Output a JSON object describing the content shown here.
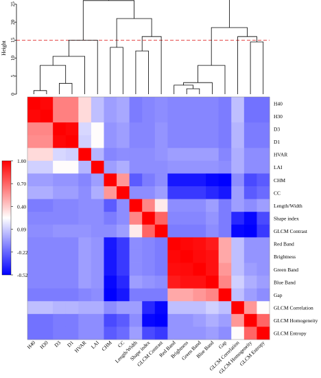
{
  "chart_data": {
    "type": "heatmap",
    "variables": [
      "H40",
      "H30",
      "D3",
      "D1",
      "HVAR",
      "LAI",
      "CHM",
      "CC",
      "Length/Width",
      "Shape index",
      "GLCM Contrast",
      "Red Band",
      "Brightness",
      "Green Band",
      "Blue Band",
      "Gap",
      "GLCM Correlation",
      "GLCM Homogeneity",
      "GLCM Entropy"
    ],
    "matrix": [
      [
        1.0,
        0.98,
        0.62,
        0.62,
        0.35,
        0.05,
        -0.05,
        -0.02,
        -0.15,
        -0.12,
        -0.1,
        -0.12,
        -0.12,
        -0.12,
        -0.12,
        -0.15,
        0.05,
        -0.18,
        -0.18
      ],
      [
        0.98,
        1.0,
        0.62,
        0.62,
        0.35,
        0.05,
        -0.05,
        -0.02,
        -0.15,
        -0.12,
        -0.1,
        -0.12,
        -0.12,
        -0.12,
        -0.12,
        -0.15,
        0.05,
        -0.18,
        -0.18
      ],
      [
        0.6,
        0.6,
        1.0,
        0.98,
        0.12,
        0.25,
        -0.08,
        -0.05,
        -0.12,
        -0.12,
        -0.08,
        -0.12,
        -0.12,
        -0.12,
        -0.12,
        -0.15,
        0.02,
        -0.15,
        -0.15
      ],
      [
        0.58,
        0.58,
        0.98,
        1.0,
        0.1,
        0.25,
        -0.08,
        -0.05,
        -0.12,
        -0.12,
        -0.08,
        -0.12,
        -0.12,
        -0.12,
        -0.12,
        -0.15,
        0.02,
        -0.15,
        -0.15
      ],
      [
        0.35,
        0.35,
        0.12,
        0.1,
        1.0,
        0.02,
        -0.12,
        -0.1,
        -0.1,
        -0.1,
        -0.08,
        -0.05,
        -0.05,
        -0.05,
        -0.05,
        -0.12,
        0.0,
        -0.1,
        -0.1
      ],
      [
        0.1,
        0.1,
        0.25,
        0.25,
        0.02,
        1.0,
        -0.05,
        0.0,
        -0.1,
        -0.1,
        -0.1,
        -0.08,
        -0.08,
        -0.08,
        -0.08,
        -0.1,
        0.0,
        -0.1,
        -0.1
      ],
      [
        -0.05,
        -0.05,
        -0.08,
        -0.08,
        -0.12,
        -0.05,
        1.0,
        0.55,
        -0.25,
        -0.15,
        -0.1,
        -0.45,
        -0.45,
        -0.45,
        -0.5,
        -0.52,
        -0.1,
        -0.3,
        -0.25
      ],
      [
        0.0,
        0.0,
        -0.05,
        -0.05,
        -0.1,
        0.0,
        0.55,
        1.0,
        -0.1,
        -0.1,
        -0.05,
        -0.35,
        -0.35,
        -0.35,
        -0.4,
        -0.45,
        -0.05,
        -0.25,
        -0.2
      ],
      [
        -0.15,
        -0.15,
        -0.12,
        -0.12,
        -0.1,
        -0.1,
        -0.25,
        -0.1,
        1.0,
        0.6,
        0.3,
        -0.1,
        -0.1,
        -0.1,
        -0.05,
        -0.15,
        -0.05,
        -0.1,
        -0.05
      ],
      [
        -0.12,
        -0.12,
        -0.12,
        -0.12,
        -0.1,
        -0.1,
        -0.15,
        -0.1,
        0.6,
        1.0,
        0.7,
        -0.12,
        -0.12,
        -0.12,
        -0.08,
        -0.15,
        -0.4,
        -0.5,
        -0.3
      ],
      [
        -0.1,
        -0.1,
        -0.08,
        -0.08,
        -0.08,
        -0.1,
        -0.1,
        -0.05,
        0.3,
        0.7,
        1.0,
        -0.15,
        -0.15,
        -0.15,
        -0.1,
        -0.15,
        -0.5,
        -0.52,
        -0.35
      ],
      [
        -0.12,
        -0.12,
        -0.12,
        -0.12,
        -0.05,
        -0.08,
        -0.45,
        -0.35,
        -0.1,
        -0.12,
        -0.15,
        1.0,
        0.98,
        0.96,
        0.92,
        0.5,
        0.05,
        -0.08,
        -0.08
      ],
      [
        -0.12,
        -0.12,
        -0.12,
        -0.12,
        -0.05,
        -0.08,
        -0.45,
        -0.35,
        -0.1,
        -0.12,
        -0.15,
        0.98,
        1.0,
        0.97,
        0.95,
        0.5,
        0.05,
        -0.08,
        -0.08
      ],
      [
        -0.12,
        -0.12,
        -0.12,
        -0.12,
        -0.05,
        -0.08,
        -0.45,
        -0.35,
        -0.1,
        -0.12,
        -0.15,
        0.96,
        0.97,
        1.0,
        0.95,
        0.55,
        0.05,
        -0.05,
        -0.08
      ],
      [
        -0.12,
        -0.12,
        -0.12,
        -0.12,
        -0.05,
        -0.08,
        -0.5,
        -0.4,
        -0.05,
        -0.08,
        -0.1,
        0.92,
        0.95,
        0.95,
        1.0,
        0.6,
        0.1,
        0.0,
        -0.05
      ],
      [
        -0.15,
        -0.15,
        -0.15,
        -0.15,
        -0.12,
        -0.1,
        -0.52,
        -0.45,
        -0.15,
        -0.15,
        -0.15,
        0.5,
        0.5,
        0.55,
        0.6,
        1.0,
        0.05,
        -0.05,
        -0.1
      ],
      [
        0.05,
        0.05,
        0.02,
        0.02,
        0.0,
        0.0,
        -0.1,
        -0.05,
        -0.05,
        -0.4,
        -0.5,
        0.05,
        0.05,
        0.05,
        0.1,
        0.05,
        1.0,
        0.55,
        0.25
      ],
      [
        -0.18,
        -0.18,
        -0.15,
        -0.15,
        -0.1,
        -0.1,
        -0.3,
        -0.25,
        -0.1,
        -0.5,
        -0.52,
        -0.08,
        -0.08,
        -0.05,
        0.0,
        -0.05,
        0.55,
        1.0,
        0.7
      ],
      [
        -0.18,
        -0.18,
        -0.15,
        -0.15,
        -0.1,
        -0.1,
        -0.25,
        -0.2,
        -0.05,
        -0.3,
        -0.35,
        -0.08,
        -0.08,
        -0.08,
        -0.05,
        -0.1,
        0.25,
        0.7,
        1.0
      ]
    ],
    "colorbar": {
      "ticks": [
        "1.00",
        "0.70",
        "0.40",
        "0.09",
        "-0.22",
        "-0.52"
      ],
      "min": -0.52,
      "max": 1.0,
      "colors": [
        "#0000ff",
        "#ffffff",
        "#ff0000"
      ]
    },
    "dendrogram": {
      "ylabel": "Height",
      "yticks": [
        0,
        5,
        10,
        15,
        20,
        25
      ],
      "ylim": [
        0,
        25
      ],
      "cut_height": 15,
      "cut_line_color": "#e03030",
      "merges": [
        [
          0,
          1,
          1.0
        ],
        [
          2,
          3,
          3.0
        ],
        [
          -1,
          -2,
          8.0
        ],
        [
          -3,
          4,
          10.5
        ],
        [
          -4,
          5,
          15.0
        ],
        [
          6,
          7,
          13.0
        ],
        [
          8,
          9,
          12.0
        ],
        [
          -7,
          10,
          16.0
        ],
        [
          -6,
          -8,
          21.0
        ],
        [
          -5,
          -9,
          26.0
        ],
        [
          12,
          13,
          1.5
        ],
        [
          11,
          -11,
          2.5
        ],
        [
          -12,
          14,
          3.2
        ],
        [
          -13,
          15,
          8.0
        ],
        [
          17,
          18,
          14.5
        ],
        [
          16,
          -15,
          16.0
        ],
        [
          -14,
          -16,
          18.5
        ],
        [
          -10,
          -17,
          29.0
        ]
      ]
    }
  }
}
